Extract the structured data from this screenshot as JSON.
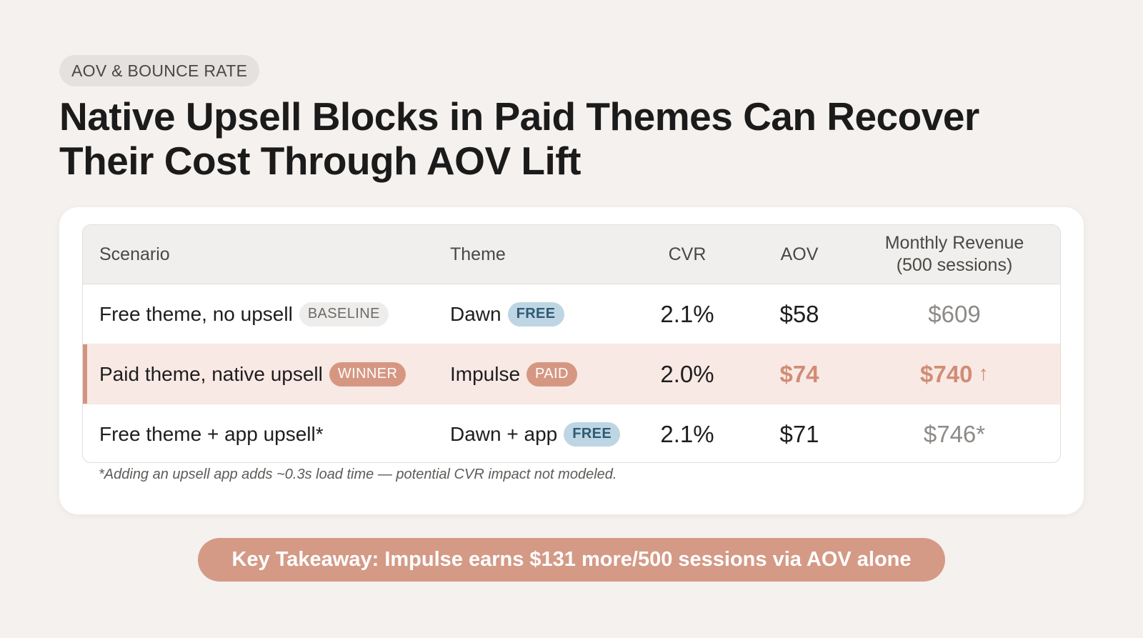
{
  "section_tag": "AOV & BOUNCE RATE",
  "headline": "Native Upsell Blocks in Paid Themes Can Recover Their Cost Through AOV Lift",
  "table": {
    "headers": {
      "scenario": "Scenario",
      "theme": "Theme",
      "cvr": "CVR",
      "aov": "AOV",
      "revenue_line1": "Monthly Revenue",
      "revenue_line2": "(500 sessions)"
    },
    "rows": [
      {
        "scenario": "Free theme, no upsell",
        "scenario_badge": "BASELINE",
        "theme": "Dawn",
        "theme_badge": "FREE",
        "cvr": "2.1%",
        "aov": "$58",
        "revenue": "$609"
      },
      {
        "scenario": "Paid theme, native upsell",
        "scenario_badge": "WINNER",
        "theme": "Impulse",
        "theme_badge": "PAID",
        "cvr": "2.0%",
        "aov": "$74",
        "revenue": "$740",
        "revenue_arrow": "↑"
      },
      {
        "scenario": "Free theme + app upsell*",
        "theme": "Dawn + app",
        "theme_badge": "FREE",
        "cvr": "2.1%",
        "aov": "$71",
        "revenue": "$746*"
      }
    ]
  },
  "footnote": "*Adding an upsell app adds ~0.3s load time — potential CVR impact not modeled.",
  "takeaway": "Key Takeaway: Impulse earns $131 more/500 sessions via AOV alone",
  "colors": {
    "accent": "#d49a86",
    "free_badge": "#bed6e3",
    "highlight_row": "#f9e9e4"
  }
}
